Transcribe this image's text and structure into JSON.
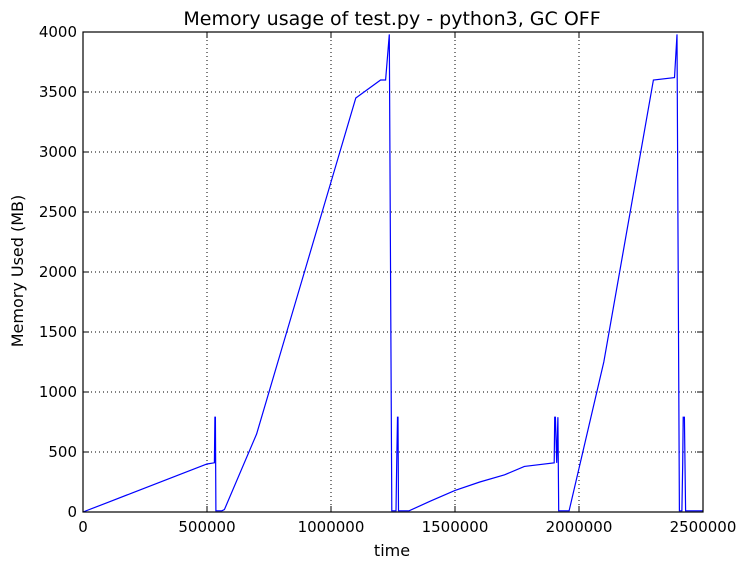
{
  "chart_data": {
    "type": "line",
    "title": "Memory usage of test.py - python3, GC OFF",
    "xlabel": "time",
    "ylabel": "Memory Used (MB)",
    "xlim": [
      0,
      2500000
    ],
    "ylim": [
      0,
      4000
    ],
    "xticks": [
      0,
      500000,
      1000000,
      1500000,
      2000000,
      2500000
    ],
    "xtick_labels": [
      "0",
      "500000",
      "1000000",
      "1500000",
      "2000000",
      "2500000"
    ],
    "yticks": [
      0,
      500,
      1000,
      1500,
      2000,
      2500,
      3000,
      3500,
      4000
    ],
    "ytick_labels": [
      "0",
      "500",
      "1000",
      "1500",
      "2000",
      "2500",
      "3000",
      "3500",
      "4000"
    ],
    "grid": true,
    "series": [
      {
        "color": "#0000ff",
        "x": [
          0,
          100000,
          200000,
          300000,
          400000,
          500000,
          530000,
          532000,
          534000,
          536000,
          538000,
          560000,
          570000,
          700000,
          800000,
          900000,
          1000000,
          1100000,
          1200000,
          1220000,
          1235000,
          1245000,
          1262000,
          1265000,
          1268000,
          1270000,
          1272000,
          1275000,
          1315000,
          1400000,
          1500000,
          1600000,
          1700000,
          1780000,
          1900000,
          1902000,
          1905000,
          1910000,
          1915000,
          1918000,
          1960000,
          2100000,
          2300000,
          2385000,
          2395000,
          2405000,
          2415000,
          2418000,
          2420000,
          2425000,
          2430000,
          2432000,
          2500000
        ],
        "y": [
          0,
          80,
          160,
          240,
          320,
          400,
          410,
          790,
          790,
          10,
          10,
          10,
          20,
          650,
          1350,
          2050,
          2750,
          3450,
          3600,
          3600,
          3980,
          10,
          10,
          400,
          790,
          790,
          10,
          10,
          10,
          90,
          180,
          250,
          310,
          380,
          410,
          790,
          790,
          410,
          790,
          10,
          10,
          1250,
          3600,
          3620,
          3980,
          10,
          10,
          400,
          790,
          790,
          10,
          10,
          10
        ]
      }
    ]
  }
}
